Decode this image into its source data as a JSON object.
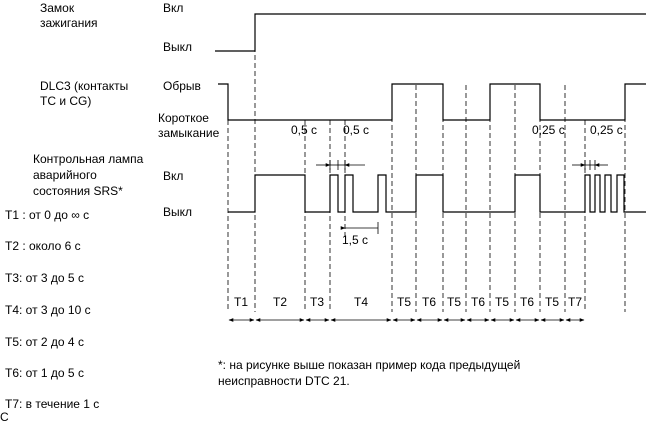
{
  "signals": {
    "ignition": {
      "name": [
        "Замок",
        "зажигания"
      ],
      "high": "Вкл",
      "low": "Выкл"
    },
    "dlc3": {
      "name": [
        "DLC3 (контакты",
        "TC и CG)"
      ],
      "high": "Обрыв",
      "low": [
        "Короткое",
        "замыкание"
      ]
    },
    "lamp": {
      "name": [
        "Контрольная лампа",
        "аварийного",
        "состояния SRS*"
      ],
      "high": "Вкл",
      "low": "Выкл"
    }
  },
  "timings": [
    {
      "id": "T1",
      "desc": "T1 : от 0 до ∞ с"
    },
    {
      "id": "T2",
      "desc": "T2 : около 6 с"
    },
    {
      "id": "T3",
      "desc": "T3: от 3 до 5 с"
    },
    {
      "id": "T4",
      "desc": "T4: от 3 до 10 с"
    },
    {
      "id": "T5",
      "desc": "T5: от 2 до 4 с"
    },
    {
      "id": "T6",
      "desc": "T6: от 1 до 5 с"
    },
    {
      "id": "T7",
      "desc": "T7: в течение 1 с"
    }
  ],
  "dimensions": {
    "dlc_short_1": "0,5 с",
    "dlc_short_2": "0,5 с",
    "dlc_short_3": "0,25 с",
    "dlc_short_4": "0,25 с",
    "lamp_gap": "1,5 с"
  },
  "intervals": [
    "T1",
    "T2",
    "T3",
    "T4",
    "T5",
    "T6",
    "T5",
    "T6",
    "T5",
    "T6",
    "T5",
    "T7"
  ],
  "footnote": [
    "*: на рисунке выше показан пример кода предыдущей",
    "неисправности DTC 21."
  ],
  "corner_mark": "C"
}
